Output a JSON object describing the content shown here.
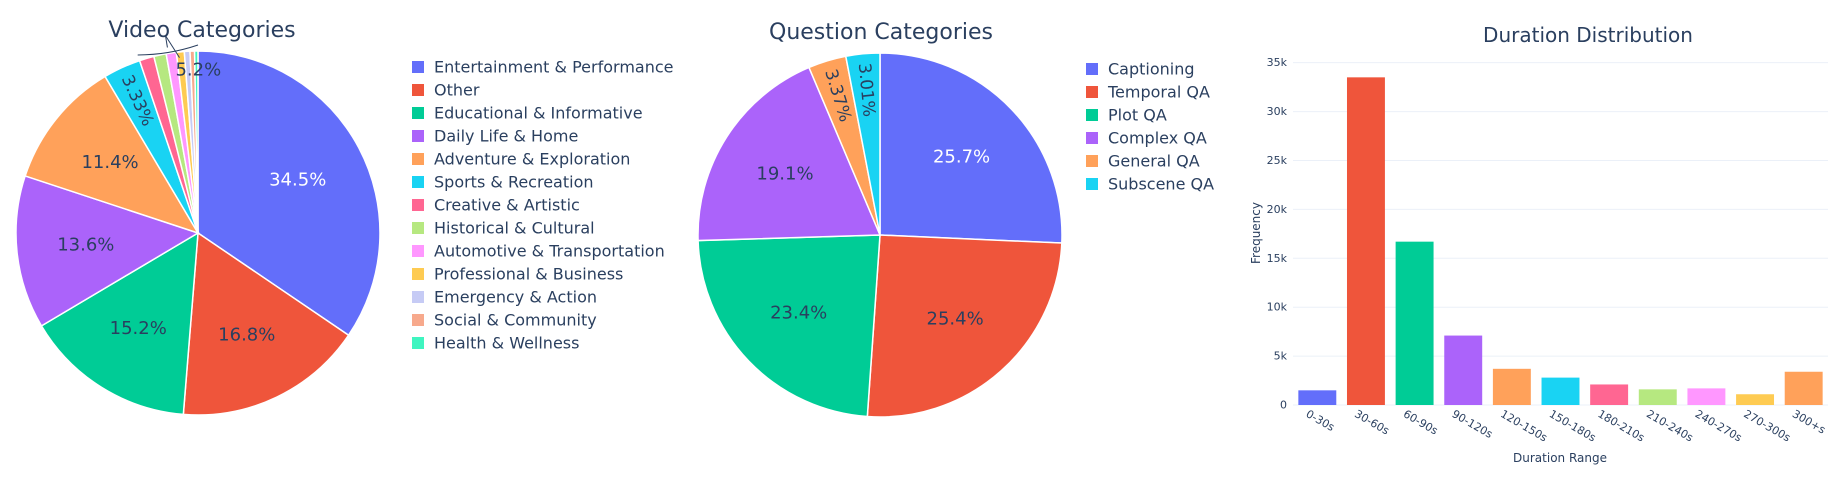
{
  "chart_data": [
    {
      "type": "pie",
      "title": "Video Categories",
      "colors_note": "plotly default palette",
      "slices": [
        {
          "label": "Entertainment & Performance",
          "value": 34.5,
          "color": "#636efa"
        },
        {
          "label": "Other",
          "value": 16.8,
          "color": "#ef553b"
        },
        {
          "label": "Educational & Informative",
          "value": 15.2,
          "color": "#00cc96"
        },
        {
          "label": "Daily Life & Home",
          "value": 13.6,
          "color": "#ab63fa"
        },
        {
          "label": "Adventure & Exploration",
          "value": 11.4,
          "color": "#ffa15a"
        },
        {
          "label": "Sports & Recreation",
          "value": 3.33,
          "color": "#19d3f3"
        },
        {
          "label": "Creative & Artistic",
          "value": 1.3,
          "color": "#ff6692"
        },
        {
          "label": "Historical & Cultural",
          "value": 1.1,
          "color": "#b6e880"
        },
        {
          "label": "Automotive & Transportation",
          "value": 0.9,
          "color": "#ff97ff"
        },
        {
          "label": "Professional & Business",
          "value": 0.7,
          "color": "#fecb52"
        },
        {
          "label": "Emergency & Action",
          "value": 0.5,
          "color": "#c6cbf5"
        },
        {
          "label": "Social & Community",
          "value": 0.4,
          "color": "#f7a98c"
        },
        {
          "label": "Health & Wellness",
          "value": 0.3,
          "color": "#3ff5c0"
        }
      ],
      "slice_labels": [
        "34.5%",
        "16.8%",
        "15.2%",
        "13.6%",
        "11.4%",
        "3.33%",
        "",
        "",
        "",
        "",
        "",
        "",
        ""
      ],
      "group_label": "5.2%"
    },
    {
      "type": "pie",
      "title": "Question Categories",
      "slices": [
        {
          "label": "Captioning",
          "value": 25.7,
          "color": "#636efa"
        },
        {
          "label": "Temporal QA",
          "value": 25.4,
          "color": "#ef553b"
        },
        {
          "label": "Plot QA",
          "value": 23.4,
          "color": "#00cc96"
        },
        {
          "label": "Complex QA",
          "value": 19.1,
          "color": "#ab63fa"
        },
        {
          "label": "General QA",
          "value": 3.37,
          "color": "#ffa15a"
        },
        {
          "label": "Subscene QA",
          "value": 3.01,
          "color": "#19d3f3"
        }
      ],
      "slice_labels": [
        "25.7%",
        "25.4%",
        "23.4%",
        "19.1%",
        "3.37%",
        "3.01%"
      ]
    },
    {
      "type": "bar",
      "title": "Duration Distribution",
      "xlabel": "Duration Range",
      "ylabel": "Frequency",
      "categories": [
        "0-30s",
        "30-60s",
        "60-90s",
        "90-120s",
        "120-150s",
        "150-180s",
        "180-210s",
        "210-240s",
        "240-270s",
        "270-300s",
        "300+s"
      ],
      "values": [
        1500,
        33500,
        16700,
        7100,
        3700,
        2800,
        2100,
        1600,
        1700,
        1100,
        3400
      ],
      "colors": [
        "#636efa",
        "#ef553b",
        "#00cc96",
        "#ab63fa",
        "#ffa15a",
        "#19d3f3",
        "#ff6692",
        "#b6e880",
        "#ff97ff",
        "#fecb52",
        "#ffa15a"
      ],
      "ylim": [
        0,
        36500
      ],
      "yticks": [
        0,
        5000,
        10000,
        15000,
        20000,
        25000,
        30000,
        35000
      ],
      "ytick_labels": [
        "0",
        "5k",
        "10k",
        "15k",
        "20k",
        "25k",
        "30k",
        "35k"
      ],
      "grid": true
    }
  ]
}
